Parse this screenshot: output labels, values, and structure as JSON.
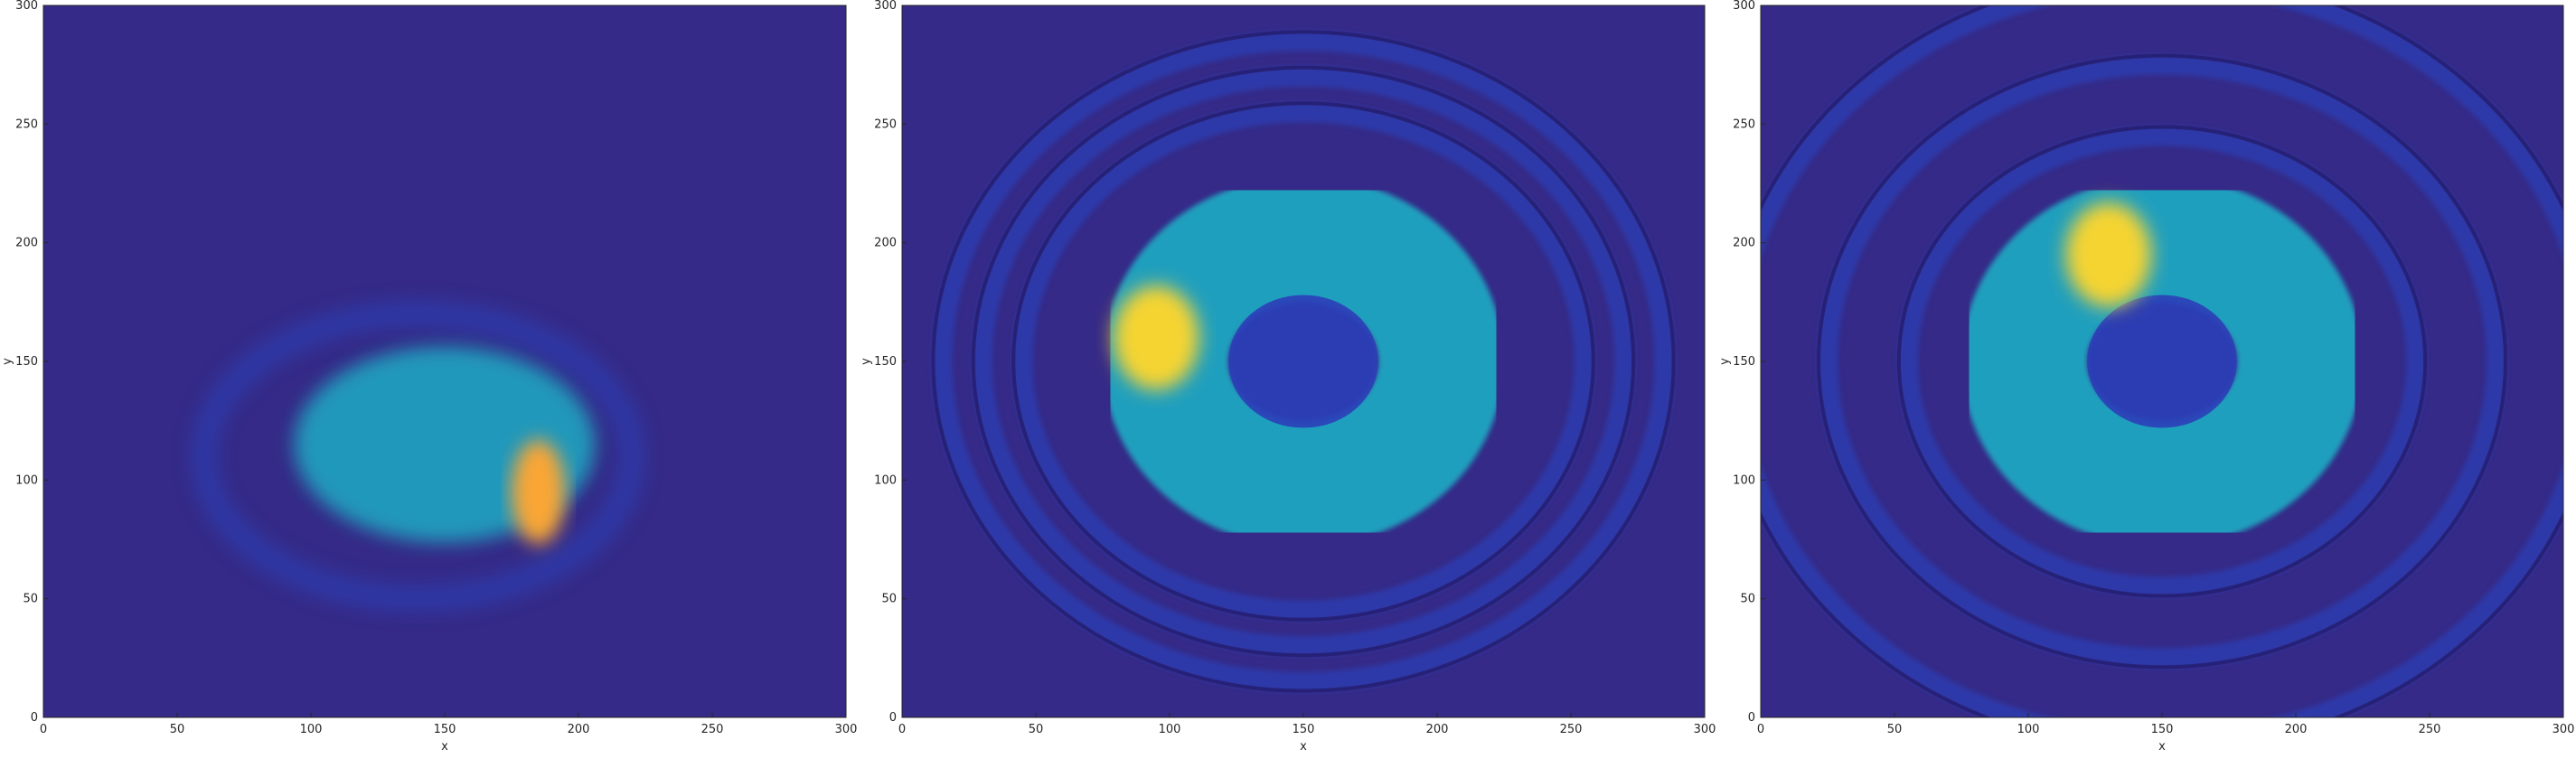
{
  "chart_data": [
    {
      "type": "heatmap",
      "xlabel": "x",
      "ylabel": "y",
      "xlim": [
        0,
        300
      ],
      "ylim": [
        0,
        300
      ],
      "xticks": [
        "0",
        "50",
        "100",
        "150",
        "200",
        "250",
        "300"
      ],
      "yticks": [
        "0",
        "50",
        "100",
        "150",
        "200",
        "250",
        "300"
      ],
      "colormap": "parula",
      "colors": {
        "background": "#352a87",
        "low": "#2b3fb8",
        "mid": "#1fb4c8",
        "high": "#f5d431",
        "peak": "#f9a635"
      },
      "features": [
        {
          "kind": "crescent-wake",
          "center": [
            140,
            110
          ],
          "radius": 80,
          "note": "faint outer halo"
        },
        {
          "kind": "sector-blob",
          "center": [
            150,
            115
          ],
          "radius_outer": 75,
          "peak_at": [
            185,
            95
          ]
        }
      ]
    },
    {
      "type": "heatmap",
      "xlabel": "x",
      "ylabel": "y",
      "xlim": [
        0,
        300
      ],
      "ylim": [
        0,
        300
      ],
      "xticks": [
        "0",
        "50",
        "100",
        "150",
        "200",
        "250",
        "300"
      ],
      "yticks": [
        "0",
        "50",
        "100",
        "150",
        "200",
        "250",
        "300"
      ],
      "colormap": "parula",
      "colors": {
        "background": "#352a87",
        "low": "#2b3fb8",
        "mid": "#1fb4c8",
        "high": "#f5d431",
        "peak": "#f9a635"
      },
      "features": [
        {
          "kind": "annulus",
          "center": [
            150,
            150
          ],
          "radius_inner": 28,
          "radius_outer": 75,
          "peak_at": [
            95,
            160
          ]
        },
        {
          "kind": "arc-waves",
          "center": [
            150,
            150
          ],
          "radii": [
            105,
            120,
            135
          ]
        }
      ]
    },
    {
      "type": "heatmap",
      "xlabel": "x",
      "ylabel": "y",
      "xlim": [
        0,
        300
      ],
      "ylim": [
        0,
        300
      ],
      "xticks": [
        "0",
        "50",
        "100",
        "150",
        "200",
        "250",
        "300"
      ],
      "yticks": [
        "0",
        "50",
        "100",
        "150",
        "200",
        "250",
        "300"
      ],
      "colormap": "parula",
      "colors": {
        "background": "#352a87",
        "low": "#2b3fb8",
        "mid": "#1fb4c8",
        "high": "#f5d431",
        "peak": "#f9a635"
      },
      "features": [
        {
          "kind": "annulus",
          "center": [
            150,
            150
          ],
          "radius_inner": 28,
          "radius_outer": 75,
          "peak_at": [
            130,
            195
          ]
        },
        {
          "kind": "arc-waves",
          "center": [
            150,
            150
          ],
          "radii": [
            95,
            125,
            160
          ]
        }
      ]
    }
  ]
}
